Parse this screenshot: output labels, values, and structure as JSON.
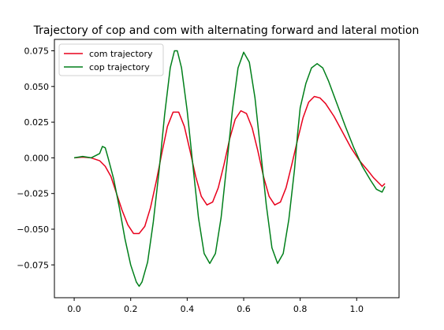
{
  "chart_data": {
    "type": "line",
    "title": "Trajectory of cop and com with alternating forward and lateral motion",
    "xlabel": "",
    "ylabel": "",
    "xlim": [
      -0.07,
      1.15
    ],
    "ylim": [
      -0.098,
      0.083
    ],
    "xticks": [
      0.0,
      0.2,
      0.4,
      0.6,
      0.8,
      1.0
    ],
    "xtick_labels": [
      "0.0",
      "0.2",
      "0.4",
      "0.6",
      "0.8",
      "1.0"
    ],
    "yticks": [
      -0.075,
      -0.05,
      -0.025,
      0.0,
      0.025,
      0.05,
      0.075
    ],
    "ytick_labels": [
      "−0.075",
      "−0.050",
      "−0.025",
      "0.000",
      "0.025",
      "0.050",
      "0.075"
    ],
    "grid": false,
    "legend_position": "top-left",
    "series": [
      {
        "name": "com trajectory",
        "color": "#e8001c",
        "points": [
          [
            0.0,
            0.0
          ],
          [
            0.03,
            0.0005
          ],
          [
            0.06,
            0.0
          ],
          [
            0.09,
            -0.002
          ],
          [
            0.11,
            -0.006
          ],
          [
            0.13,
            -0.013
          ],
          [
            0.15,
            -0.025
          ],
          [
            0.17,
            -0.037
          ],
          [
            0.19,
            -0.047
          ],
          [
            0.21,
            -0.053
          ],
          [
            0.23,
            -0.053
          ],
          [
            0.25,
            -0.048
          ],
          [
            0.27,
            -0.035
          ],
          [
            0.29,
            -0.017
          ],
          [
            0.31,
            0.003
          ],
          [
            0.33,
            0.022
          ],
          [
            0.35,
            0.032
          ],
          [
            0.37,
            0.032
          ],
          [
            0.39,
            0.022
          ],
          [
            0.41,
            0.005
          ],
          [
            0.43,
            -0.013
          ],
          [
            0.45,
            -0.027
          ],
          [
            0.47,
            -0.033
          ],
          [
            0.49,
            -0.031
          ],
          [
            0.51,
            -0.021
          ],
          [
            0.53,
            -0.005
          ],
          [
            0.55,
            0.013
          ],
          [
            0.57,
            0.027
          ],
          [
            0.59,
            0.033
          ],
          [
            0.61,
            0.031
          ],
          [
            0.63,
            0.021
          ],
          [
            0.65,
            0.005
          ],
          [
            0.67,
            -0.013
          ],
          [
            0.69,
            -0.027
          ],
          [
            0.71,
            -0.033
          ],
          [
            0.73,
            -0.031
          ],
          [
            0.75,
            -0.021
          ],
          [
            0.77,
            -0.005
          ],
          [
            0.79,
            0.012
          ],
          [
            0.81,
            0.028
          ],
          [
            0.83,
            0.039
          ],
          [
            0.85,
            0.043
          ],
          [
            0.87,
            0.042
          ],
          [
            0.89,
            0.038
          ],
          [
            0.92,
            0.029
          ],
          [
            0.95,
            0.018
          ],
          [
            0.98,
            0.007
          ],
          [
            1.01,
            -0.002
          ],
          [
            1.04,
            -0.009
          ],
          [
            1.06,
            -0.014
          ],
          [
            1.08,
            -0.018
          ],
          [
            1.09,
            -0.02
          ],
          [
            1.1,
            -0.018
          ]
        ]
      },
      {
        "name": "cop trajectory",
        "color": "#007f1a",
        "points": [
          [
            0.0,
            0.0
          ],
          [
            0.03,
            0.001
          ],
          [
            0.06,
            0.0
          ],
          [
            0.08,
            0.002
          ],
          [
            0.09,
            0.003
          ],
          [
            0.1,
            0.008
          ],
          [
            0.11,
            0.007
          ],
          [
            0.12,
            0.0
          ],
          [
            0.14,
            -0.015
          ],
          [
            0.16,
            -0.035
          ],
          [
            0.18,
            -0.057
          ],
          [
            0.2,
            -0.075
          ],
          [
            0.22,
            -0.087
          ],
          [
            0.23,
            -0.09
          ],
          [
            0.24,
            -0.087
          ],
          [
            0.26,
            -0.073
          ],
          [
            0.28,
            -0.045
          ],
          [
            0.3,
            -0.01
          ],
          [
            0.32,
            0.03
          ],
          [
            0.34,
            0.063
          ],
          [
            0.355,
            0.075
          ],
          [
            0.365,
            0.075
          ],
          [
            0.38,
            0.063
          ],
          [
            0.4,
            0.033
          ],
          [
            0.42,
            -0.005
          ],
          [
            0.44,
            -0.042
          ],
          [
            0.46,
            -0.067
          ],
          [
            0.48,
            -0.074
          ],
          [
            0.5,
            -0.067
          ],
          [
            0.52,
            -0.042
          ],
          [
            0.54,
            -0.005
          ],
          [
            0.56,
            0.033
          ],
          [
            0.58,
            0.063
          ],
          [
            0.6,
            0.074
          ],
          [
            0.62,
            0.067
          ],
          [
            0.64,
            0.042
          ],
          [
            0.66,
            0.005
          ],
          [
            0.68,
            -0.033
          ],
          [
            0.7,
            -0.063
          ],
          [
            0.72,
            -0.074
          ],
          [
            0.74,
            -0.067
          ],
          [
            0.76,
            -0.043
          ],
          [
            0.78,
            -0.008
          ],
          [
            0.79,
            0.015
          ],
          [
            0.8,
            0.035
          ],
          [
            0.82,
            0.052
          ],
          [
            0.84,
            0.063
          ],
          [
            0.86,
            0.066
          ],
          [
            0.88,
            0.063
          ],
          [
            0.9,
            0.054
          ],
          [
            0.93,
            0.038
          ],
          [
            0.96,
            0.022
          ],
          [
            0.99,
            0.007
          ],
          [
            1.02,
            -0.006
          ],
          [
            1.05,
            -0.016
          ],
          [
            1.07,
            -0.022
          ],
          [
            1.09,
            -0.024
          ],
          [
            1.1,
            -0.02
          ]
        ]
      }
    ]
  }
}
